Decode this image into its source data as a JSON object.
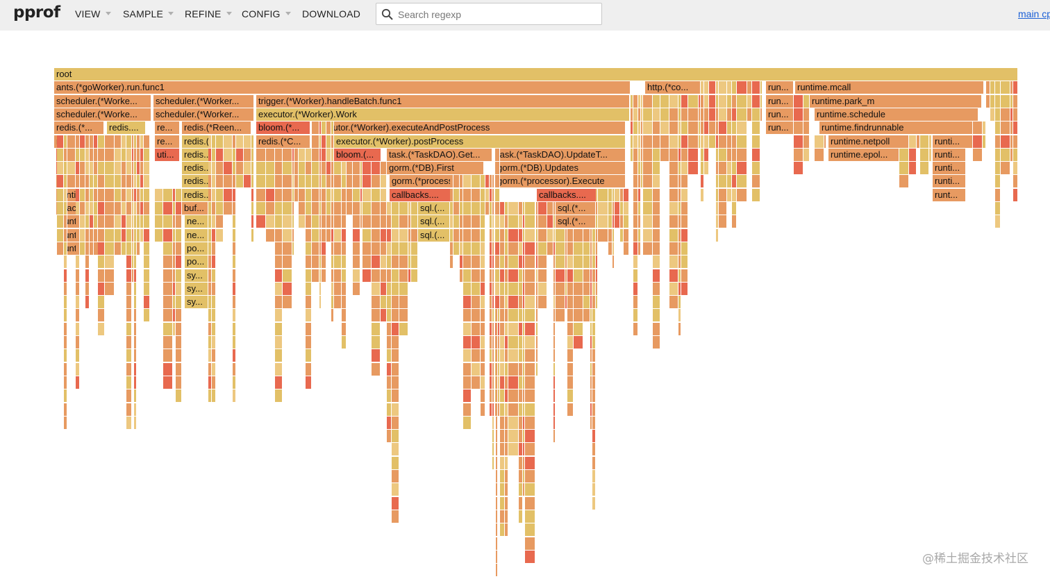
{
  "app": {
    "logo": "pprof",
    "title_link": "main cp"
  },
  "menu": [
    {
      "label": "VIEW",
      "has_caret": true
    },
    {
      "label": "SAMPLE",
      "has_caret": true
    },
    {
      "label": "REFINE",
      "has_caret": true
    },
    {
      "label": "CONFIG",
      "has_caret": true
    },
    {
      "label": "DOWNLOAD",
      "has_caret": false
    }
  ],
  "search": {
    "placeholder": "Search regexp",
    "value": "",
    "icon": "search-icon"
  },
  "colors": {
    "yellow": "#e2c067",
    "orange": "#e79a61",
    "red": "#e8694f",
    "light": "#edc880"
  },
  "flame": {
    "type": "flame-graph",
    "frames": [
      "root",
      "ants.(*goWorker).run.func1",
      "http.(*co...",
      "run...",
      "runtime.mcall",
      "scheduler.(*Worke...",
      "scheduler.(*Worker...",
      "trigger.(*Worker).handleBatch.func1",
      "run...",
      "runtime.park_m",
      "scheduler.(*Worke...",
      "scheduler.(*Worker...",
      "executor.(*Worker).Work",
      "run...",
      "runtime.schedule",
      "redis.(*...",
      "redis....",
      "re...",
      "redis.(*Reen...",
      "bloom.(*...",
      "executor.(*Worker).executeAndPostProcess",
      "run...",
      "runtime.findrunnable",
      "redis.Ne...",
      "re...",
      "redis.(...",
      "re...",
      "redis.(*C...",
      "executor.(*Worker).postProcess",
      "runtime.netpoll",
      "runti...",
      "utils.Ge...",
      "uti...",
      "redis....",
      "redis....",
      "bloom.(...",
      "task.(*TaskDAO).Get...",
      "task.(*TaskDAO).UpdateT...",
      "runtime.epol...",
      "runti...",
      "utils.Ge...",
      "redis....",
      "red...",
      "gorm.(*DB).First",
      "gorm.(*DB).Updates",
      "runti...",
      "runtim...",
      "redis....",
      "gorm.(*processor...",
      "gorm.(*processor).Execute",
      "runti...",
      "runtim...",
      "redis....",
      "callbacks....",
      "log...",
      "callbacks....",
      "lo...",
      "runt...",
      "Stack....",
      "buf...",
      "sql.(...",
      "sql.(*...",
      "runti...",
      "ne...",
      "sql.(...",
      "sql.(*...",
      "runti...",
      "ne...",
      "sql.(...",
      "runti...",
      "po...",
      "po...",
      "sy...",
      "sy...",
      "sy..."
    ]
  }
}
